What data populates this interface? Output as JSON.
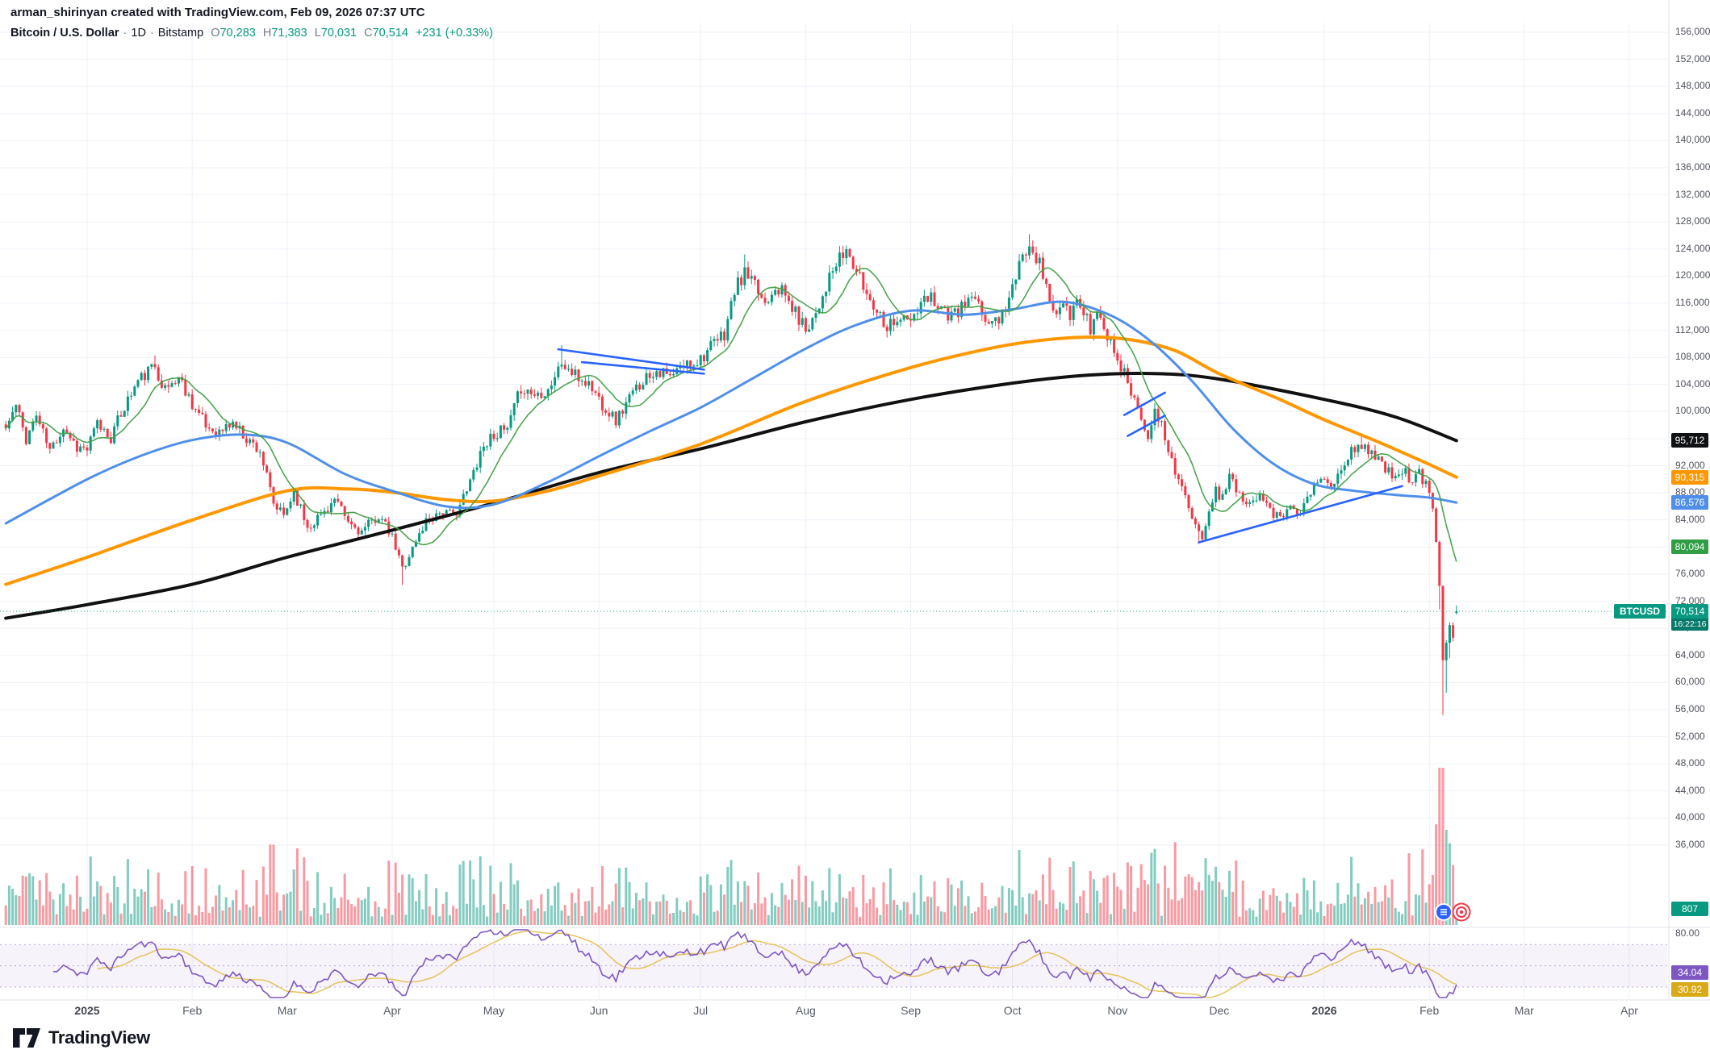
{
  "header": {
    "byline": "arman_shirinyan created with TradingView.com, Feb 09, 2026 07:37 UTC",
    "symbol_title": "Bitcoin / U.S. Dollar",
    "dot": "·",
    "interval": "1D",
    "exchange": "Bitstamp",
    "ohlc": {
      "o_label": "O",
      "o_value": "70,283",
      "h_label": "H",
      "h_value": "71,383",
      "l_label": "L",
      "l_value": "70,031",
      "c_label": "C",
      "c_value": "70,514",
      "change": "+231 (+0.33%)"
    }
  },
  "badges": {
    "axis_badges": [
      {
        "name": "ma200-price-badge",
        "text": "95,712",
        "price": 95712,
        "bg": "#101114",
        "fg": "#ffffff"
      },
      {
        "name": "ma100-price-badge",
        "text": "90,315",
        "price": 90315,
        "bg": "#ff9800",
        "fg": "#ffffff"
      },
      {
        "name": "ma50-price-badge",
        "text": "86,576",
        "price": 86576,
        "bg": "#4f8fea",
        "fg": "#ffffff"
      },
      {
        "name": "sma12-price-badge",
        "text": "80,094",
        "price": 80094,
        "bg": "#2f9e44",
        "fg": "#ffffff"
      }
    ],
    "price_badge": {
      "text": "70,514",
      "countdown": "16:22:16",
      "bg": "#089981",
      "countdown_bg": "#067a6a"
    },
    "symbol_flag": {
      "text": "BTCUSD",
      "bg": "#089981"
    },
    "volume_badge": {
      "text": "807",
      "bg": "#089981"
    },
    "rsi_badges": [
      {
        "name": "rsi-value-badge",
        "text": "34.04",
        "bg": "#7e57c2",
        "fg": "#ffffff"
      },
      {
        "name": "rsi-ma-badge",
        "text": "30.92",
        "bg": "#d9a916",
        "fg": "#ffffff"
      }
    ],
    "rsi_top_label": "80.00"
  },
  "time_axis": {
    "labels": [
      {
        "t": "2025",
        "day": 24,
        "year": true
      },
      {
        "t": "Feb",
        "day": 55
      },
      {
        "t": "Mar",
        "day": 83
      },
      {
        "t": "Apr",
        "day": 114
      },
      {
        "t": "May",
        "day": 144
      },
      {
        "t": "Jun",
        "day": 175
      },
      {
        "t": "Jul",
        "day": 205
      },
      {
        "t": "Aug",
        "day": 236
      },
      {
        "t": "Sep",
        "day": 267
      },
      {
        "t": "Oct",
        "day": 297
      },
      {
        "t": "Nov",
        "day": 328
      },
      {
        "t": "Dec",
        "day": 358
      },
      {
        "t": "2026",
        "day": 389,
        "year": true
      },
      {
        "t": "Feb",
        "day": 420
      },
      {
        "t": "Mar",
        "day": 448
      },
      {
        "t": "Apr",
        "day": 479
      }
    ]
  },
  "logo": {
    "text": "TradingView"
  },
  "colors": {
    "up": "#089981",
    "down": "#f23645",
    "volume_up": "rgba(8,153,129,0.5)",
    "volume_down": "rgba(242,54,69,0.5)",
    "ma_fast": "#43a047",
    "ma50": "#4f8fea",
    "ma100": "#ff9800",
    "ma200": "#111111",
    "trendline": "#2962ff",
    "rsi": "#7e57c2",
    "rsi_ma": "#e5c35a",
    "rsi_band": "rgba(126,87,194,0.07)",
    "rsi_dash": "rgba(126,87,194,0.5)",
    "grid": "#eef1f8",
    "axis_border": "#e0e3eb",
    "current_price_line": "#089981"
  },
  "chart_data": {
    "type": "candlestick",
    "symbol": "BTCUSD",
    "interval": "1D",
    "exchange": "Bitstamp",
    "title": "Bitcoin / U.S. Dollar",
    "ylim": [
      36000,
      156000
    ],
    "tick_step": 4000,
    "current_price": 70514,
    "last_candle": {
      "open": 70283,
      "high": 71383,
      "low": 70031,
      "close": 70514
    },
    "last_volume": 807,
    "price_anchors": [
      [
        0,
        97500
      ],
      [
        3,
        100800
      ],
      [
        6,
        96000
      ],
      [
        9,
        99500
      ],
      [
        13,
        94200
      ],
      [
        17,
        97800
      ],
      [
        21,
        94800
      ],
      [
        24,
        94400
      ],
      [
        27,
        98200
      ],
      [
        31,
        96200
      ],
      [
        35,
        100800
      ],
      [
        39,
        104500
      ],
      [
        44,
        106800
      ],
      [
        47,
        103200
      ],
      [
        51,
        105100
      ],
      [
        55,
        101300
      ],
      [
        59,
        97800
      ],
      [
        63,
        96900
      ],
      [
        67,
        98400
      ],
      [
        71,
        96100
      ],
      [
        75,
        94300
      ],
      [
        79,
        86200
      ],
      [
        82,
        84600
      ],
      [
        85,
        88300
      ],
      [
        89,
        83000
      ],
      [
        93,
        84800
      ],
      [
        97,
        86900
      ],
      [
        101,
        83600
      ],
      [
        105,
        82200
      ],
      [
        110,
        84700
      ],
      [
        114,
        81300
      ],
      [
        117,
        76900
      ],
      [
        120,
        79800
      ],
      [
        124,
        83900
      ],
      [
        128,
        85200
      ],
      [
        132,
        84600
      ],
      [
        136,
        88100
      ],
      [
        140,
        94200
      ],
      [
        144,
        96800
      ],
      [
        148,
        97200
      ],
      [
        152,
        103600
      ],
      [
        156,
        102500
      ],
      [
        160,
        103400
      ],
      [
        164,
        107100
      ],
      [
        168,
        105200
      ],
      [
        172,
        104100
      ],
      [
        176,
        101200
      ],
      [
        180,
        98700
      ],
      [
        184,
        101900
      ],
      [
        188,
        104800
      ],
      [
        192,
        106300
      ],
      [
        196,
        104900
      ],
      [
        200,
        106800
      ],
      [
        204,
        107600
      ],
      [
        208,
        109400
      ],
      [
        212,
        111500
      ],
      [
        215,
        117800
      ],
      [
        218,
        120400
      ],
      [
        221,
        118300
      ],
      [
        224,
        116200
      ],
      [
        227,
        118900
      ],
      [
        230,
        117000
      ],
      [
        233,
        114500
      ],
      [
        236,
        112300
      ],
      [
        239,
        114800
      ],
      [
        242,
        118600
      ],
      [
        245,
        121500
      ],
      [
        248,
        123800
      ],
      [
        251,
        120600
      ],
      [
        254,
        117400
      ],
      [
        257,
        115200
      ],
      [
        260,
        112800
      ],
      [
        263,
        113900
      ],
      [
        267,
        113200
      ],
      [
        270,
        115600
      ],
      [
        273,
        117100
      ],
      [
        276,
        115500
      ],
      [
        279,
        113800
      ],
      [
        282,
        115300
      ],
      [
        285,
        116800
      ],
      [
        288,
        114400
      ],
      [
        291,
        112900
      ],
      [
        294,
        114600
      ],
      [
        297,
        118200
      ],
      [
        300,
        122600
      ],
      [
        302,
        125400
      ],
      [
        304,
        123100
      ],
      [
        306,
        120200
      ],
      [
        308,
        116800
      ],
      [
        310,
        113900
      ],
      [
        312,
        115700
      ],
      [
        314,
        113400
      ],
      [
        316,
        116500
      ],
      [
        318,
        114700
      ],
      [
        320,
        112300
      ],
      [
        322,
        114800
      ],
      [
        324,
        112100
      ],
      [
        326,
        110300
      ],
      [
        329,
        106800
      ],
      [
        332,
        103200
      ],
      [
        335,
        99400
      ],
      [
        337,
        96800
      ],
      [
        339,
        99600
      ],
      [
        341,
        97800
      ],
      [
        343,
        94300
      ],
      [
        345,
        91600
      ],
      [
        347,
        88900
      ],
      [
        349,
        85400
      ],
      [
        351,
        82600
      ],
      [
        353,
        81700
      ],
      [
        355,
        85900
      ],
      [
        357,
        88300
      ],
      [
        358,
        87600
      ],
      [
        361,
        90200
      ],
      [
        364,
        88300
      ],
      [
        367,
        86100
      ],
      [
        370,
        88600
      ],
      [
        373,
        85800
      ],
      [
        376,
        83900
      ],
      [
        379,
        86800
      ],
      [
        382,
        85100
      ],
      [
        385,
        87900
      ],
      [
        388,
        90400
      ],
      [
        391,
        88600
      ],
      [
        394,
        91400
      ],
      [
        397,
        93900
      ],
      [
        400,
        95300
      ],
      [
        403,
        94000
      ],
      [
        406,
        92200
      ],
      [
        409,
        90300
      ],
      [
        412,
        91700
      ],
      [
        415,
        89500
      ],
      [
        417,
        90800
      ],
      [
        420,
        88200
      ],
      [
        421,
        85600
      ],
      [
        422,
        81000
      ],
      [
        423,
        74500
      ],
      [
        424,
        63800
      ],
      [
        425,
        66500
      ],
      [
        426,
        68800
      ],
      [
        427,
        67200
      ],
      [
        428,
        70514
      ]
    ],
    "wick_overrides": [
      {
        "day": 44,
        "high": 108300
      },
      {
        "day": 117,
        "low": 74400
      },
      {
        "day": 164,
        "high": 109800
      },
      {
        "day": 218,
        "high": 123200
      },
      {
        "day": 248,
        "high": 124500
      },
      {
        "day": 302,
        "high": 126200
      },
      {
        "day": 352,
        "low": 80450
      },
      {
        "day": 400,
        "high": 96800
      },
      {
        "day": 423,
        "low": 70800
      },
      {
        "day": 424,
        "low": 55200
      },
      {
        "day": 425,
        "low": 58500
      },
      {
        "day": 426,
        "low": 63600
      }
    ],
    "moving_averages": {
      "sma12": {
        "period": 12,
        "computed": true,
        "last_value": 80094
      },
      "sma50_anchors": [
        [
          0,
          83500
        ],
        [
          24,
          90000
        ],
        [
          40,
          93500
        ],
        [
          55,
          95800
        ],
        [
          70,
          96600
        ],
        [
          83,
          95400
        ],
        [
          100,
          90800
        ],
        [
          114,
          88300
        ],
        [
          130,
          86000
        ],
        [
          144,
          86300
        ],
        [
          160,
          89600
        ],
        [
          175,
          93400
        ],
        [
          190,
          97100
        ],
        [
          205,
          100600
        ],
        [
          220,
          104800
        ],
        [
          236,
          109300
        ],
        [
          251,
          112800
        ],
        [
          267,
          114900
        ],
        [
          283,
          114300
        ],
        [
          297,
          115100
        ],
        [
          312,
          116200
        ],
        [
          326,
          114200
        ],
        [
          338,
          110300
        ],
        [
          350,
          104500
        ],
        [
          362,
          97500
        ],
        [
          374,
          92300
        ],
        [
          386,
          89300
        ],
        [
          398,
          88300
        ],
        [
          410,
          87700
        ],
        [
          420,
          87300
        ],
        [
          428,
          86576
        ]
      ],
      "sma100_anchors": [
        [
          0,
          74500
        ],
        [
          24,
          78500
        ],
        [
          55,
          84000
        ],
        [
          83,
          88300
        ],
        [
          100,
          88600
        ],
        [
          114,
          88100
        ],
        [
          130,
          87000
        ],
        [
          144,
          86800
        ],
        [
          160,
          88300
        ],
        [
          175,
          90500
        ],
        [
          205,
          95200
        ],
        [
          236,
          101500
        ],
        [
          267,
          106500
        ],
        [
          290,
          109300
        ],
        [
          305,
          110500
        ],
        [
          320,
          111000
        ],
        [
          332,
          110600
        ],
        [
          345,
          109000
        ],
        [
          358,
          105600
        ],
        [
          375,
          102000
        ],
        [
          389,
          98800
        ],
        [
          405,
          95500
        ],
        [
          420,
          92200
        ],
        [
          428,
          90315
        ]
      ],
      "sma200_anchors": [
        [
          0,
          69500
        ],
        [
          24,
          71500
        ],
        [
          55,
          74500
        ],
        [
          83,
          78500
        ],
        [
          114,
          82500
        ],
        [
          144,
          86500
        ],
        [
          175,
          91000
        ],
        [
          205,
          94500
        ],
        [
          236,
          98500
        ],
        [
          267,
          101800
        ],
        [
          297,
          104200
        ],
        [
          320,
          105400
        ],
        [
          340,
          105600
        ],
        [
          358,
          104800
        ],
        [
          389,
          101800
        ],
        [
          410,
          99200
        ],
        [
          428,
          95712
        ]
      ]
    },
    "trendlines": [
      [
        163,
        109200,
        206,
        106200
      ],
      [
        170,
        107300,
        206,
        105600
      ],
      [
        330,
        99500,
        342,
        102800
      ],
      [
        331,
        96400,
        342,
        99400
      ],
      [
        352,
        80700,
        412,
        89000
      ]
    ],
    "rsi": {
      "period": 14,
      "bands": [
        70,
        50,
        30
      ],
      "scale_top": 80,
      "current": 34.04,
      "ma_value": 30.92
    }
  }
}
